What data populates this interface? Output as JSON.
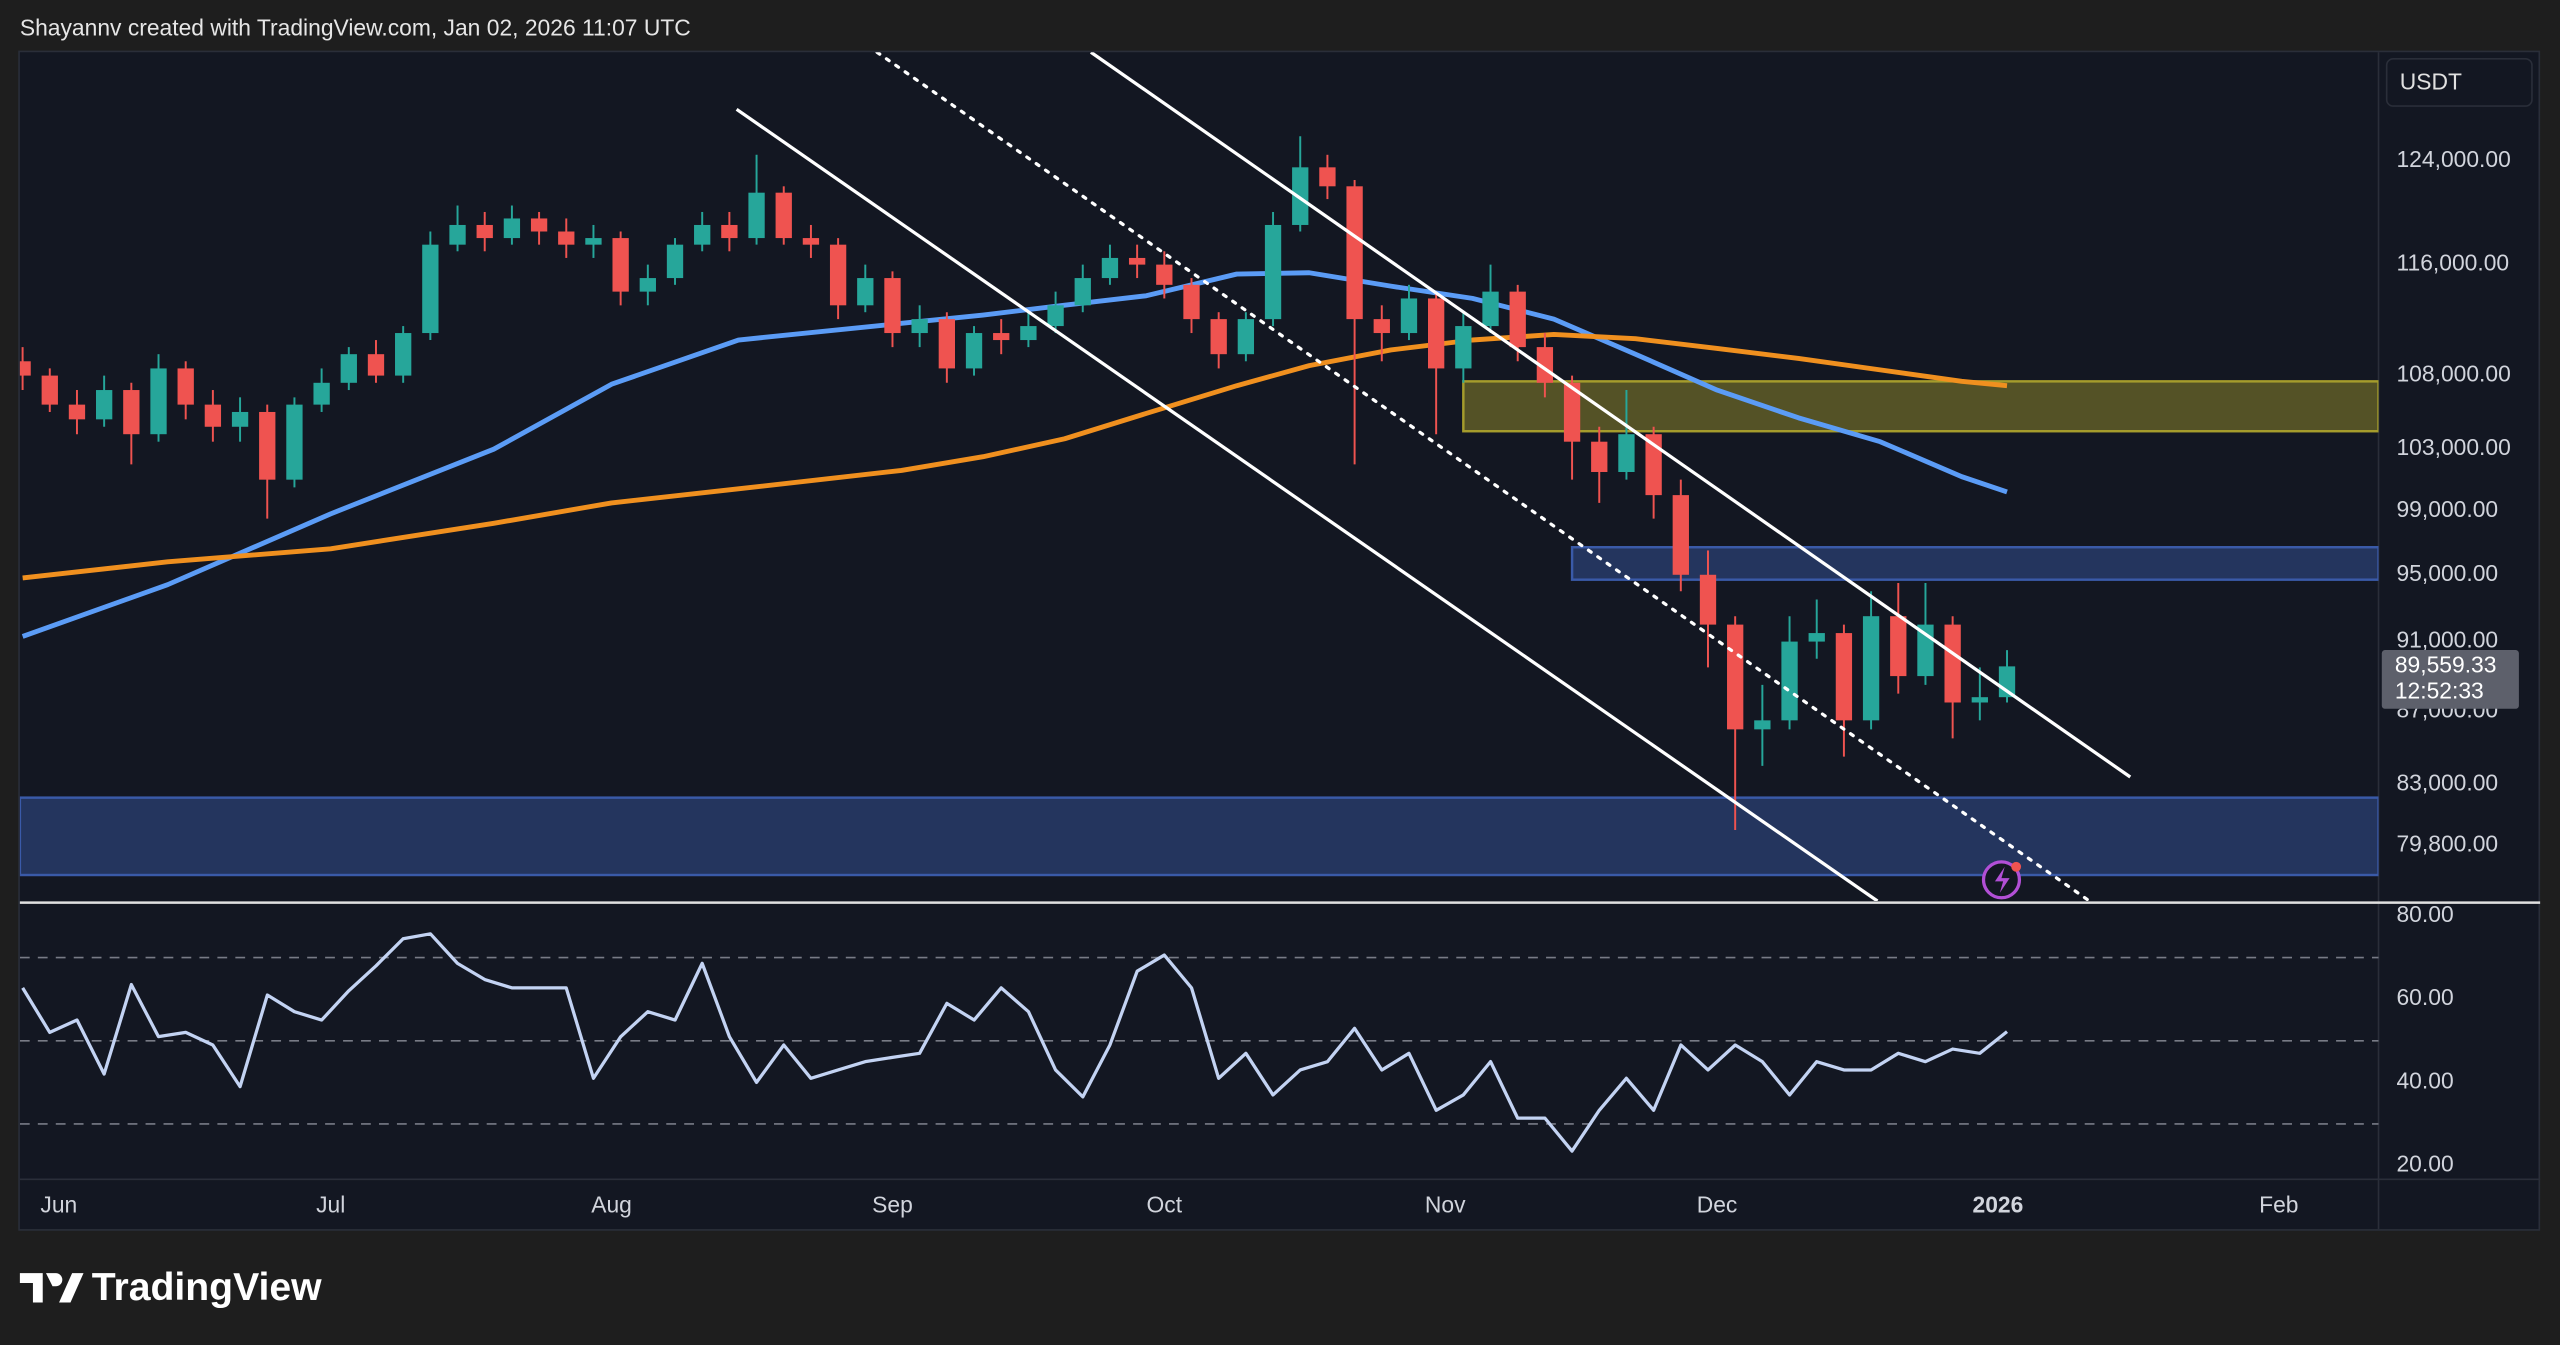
{
  "header": "Shayannv created with TradingView.com, Jan 02, 2026 11:07 UTC",
  "brand": "TradingView",
  "chart_data": {
    "type": "candlestick",
    "currency": "USDT",
    "log_scale": true,
    "grid": false,
    "up_color": "#26a69a",
    "down_color": "#ef5350",
    "xlim": [
      -4.3,
      256
    ],
    "xticks": [
      {
        "value": 0,
        "label": "Jun"
      },
      {
        "value": 30,
        "label": "Jul"
      },
      {
        "value": 61,
        "label": "Aug"
      },
      {
        "value": 92,
        "label": "Sep"
      },
      {
        "value": 122,
        "label": "Oct"
      },
      {
        "value": 153,
        "label": "Nov"
      },
      {
        "value": 183,
        "label": "Dec"
      },
      {
        "value": 214,
        "label": "2026"
      },
      {
        "value": 245,
        "label": "Feb"
      }
    ],
    "ylim": [
      77000,
      133000
    ],
    "yticks": [
      {
        "value": 124000,
        "label": "124,000.00"
      },
      {
        "value": 116000,
        "label": "116,000.00"
      },
      {
        "value": 108000,
        "label": "108,000.00"
      },
      {
        "value": 103000,
        "label": "103,000.00"
      },
      {
        "value": 99000,
        "label": "99,000.00"
      },
      {
        "value": 95000,
        "label": "95,000.00"
      },
      {
        "value": 91000,
        "label": "91,000.00"
      },
      {
        "value": 87000,
        "label": "87,000.00"
      },
      {
        "value": 83000,
        "label": "83,000.00"
      },
      {
        "value": 79800,
        "label": "79,800.00"
      }
    ],
    "x": [
      -4,
      -1,
      2,
      5,
      8,
      11,
      14,
      17,
      20,
      23,
      26,
      29,
      32,
      35,
      38,
      41,
      44,
      47,
      50,
      53,
      56,
      59,
      62,
      65,
      68,
      71,
      74,
      77,
      80,
      83,
      86,
      89,
      92,
      95,
      98,
      101,
      104,
      107,
      110,
      113,
      116,
      119,
      122,
      125,
      128,
      131,
      134,
      137,
      140,
      143,
      146,
      149,
      152,
      155,
      158,
      161,
      164,
      167,
      170,
      173,
      176,
      179,
      182,
      185,
      188,
      191,
      194,
      197,
      200,
      203,
      206,
      209,
      212,
      215
    ],
    "candles": [
      [
        109000,
        110000,
        107000,
        108000
      ],
      [
        108000,
        108500,
        105500,
        106000
      ],
      [
        106000,
        107000,
        104000,
        105000
      ],
      [
        105000,
        108000,
        104500,
        107000
      ],
      [
        107000,
        107500,
        102000,
        104000
      ],
      [
        104000,
        109500,
        103500,
        108500
      ],
      [
        108500,
        109000,
        105000,
        106000
      ],
      [
        106000,
        107000,
        103500,
        104500
      ],
      [
        104500,
        106500,
        103500,
        105500
      ],
      [
        105500,
        106000,
        98500,
        101000
      ],
      [
        101000,
        106500,
        100500,
        106000
      ],
      [
        106000,
        108500,
        105500,
        107500
      ],
      [
        107500,
        110000,
        107000,
        109500
      ],
      [
        109500,
        110500,
        107500,
        108000
      ],
      [
        108000,
        111500,
        107500,
        111000
      ],
      [
        111000,
        118500,
        110500,
        117500
      ],
      [
        117500,
        120500,
        117000,
        119000
      ],
      [
        119000,
        120000,
        117000,
        118000
      ],
      [
        118000,
        120500,
        117500,
        119500
      ],
      [
        119500,
        120000,
        117500,
        118500
      ],
      [
        118500,
        119500,
        116500,
        117500
      ],
      [
        117500,
        119000,
        116500,
        118000
      ],
      [
        118000,
        118500,
        113000,
        114000
      ],
      [
        114000,
        116000,
        113000,
        115000
      ],
      [
        115000,
        118000,
        114500,
        117500
      ],
      [
        117500,
        120000,
        117000,
        119000
      ],
      [
        119000,
        120000,
        117000,
        118000
      ],
      [
        118000,
        124500,
        117500,
        121500
      ],
      [
        121500,
        122000,
        117500,
        118000
      ],
      [
        118000,
        119000,
        116500,
        117500
      ],
      [
        117500,
        118000,
        112000,
        113000
      ],
      [
        113000,
        116000,
        112500,
        115000
      ],
      [
        115000,
        115500,
        110000,
        111000
      ],
      [
        111000,
        113000,
        110000,
        112000
      ],
      [
        112000,
        112500,
        107500,
        108500
      ],
      [
        108500,
        111500,
        108000,
        111000
      ],
      [
        111000,
        112000,
        109500,
        110500
      ],
      [
        110500,
        112500,
        110000,
        111500
      ],
      [
        111500,
        114000,
        111000,
        113000
      ],
      [
        113000,
        116000,
        112500,
        115000
      ],
      [
        115000,
        117500,
        114500,
        116500
      ],
      [
        116500,
        117500,
        115000,
        116000
      ],
      [
        116000,
        117000,
        113500,
        114500
      ],
      [
        114500,
        115000,
        111000,
        112000
      ],
      [
        112000,
        112500,
        108500,
        109500
      ],
      [
        109500,
        112500,
        109000,
        112000
      ],
      [
        112000,
        120000,
        111500,
        119000
      ],
      [
        119000,
        126000,
        118500,
        123500
      ],
      [
        123500,
        124500,
        121000,
        122000
      ],
      [
        122000,
        122500,
        102000,
        112000
      ],
      [
        112000,
        113000,
        109000,
        111000
      ],
      [
        111000,
        114500,
        110500,
        113500
      ],
      [
        113500,
        114000,
        104000,
        108500
      ],
      [
        108500,
        112500,
        107500,
        111500
      ],
      [
        111500,
        116000,
        111000,
        114000
      ],
      [
        114000,
        114500,
        109000,
        110000
      ],
      [
        110000,
        111000,
        106500,
        107500
      ],
      [
        107500,
        108000,
        101000,
        103500
      ],
      [
        103500,
        104500,
        99500,
        101500
      ],
      [
        101500,
        107000,
        101000,
        104000
      ],
      [
        104000,
        104500,
        98500,
        100000
      ],
      [
        100000,
        101000,
        94000,
        95000
      ],
      [
        95000,
        96500,
        89500,
        92000
      ],
      [
        92000,
        92500,
        80600,
        86000
      ],
      [
        86000,
        88500,
        84000,
        86500
      ],
      [
        86500,
        92500,
        86000,
        91000
      ],
      [
        91000,
        93500,
        90000,
        91500
      ],
      [
        91500,
        92000,
        84500,
        86500
      ],
      [
        86500,
        94000,
        86000,
        92500
      ],
      [
        92500,
        94500,
        88000,
        89000
      ],
      [
        89000,
        94500,
        88500,
        92000
      ],
      [
        92000,
        92500,
        85500,
        87500
      ],
      [
        87500,
        89500,
        86500,
        87800
      ],
      [
        87800,
        90500,
        87500,
        89559.33
      ]
    ],
    "moving_averages": [
      {
        "color": "#5b9cf6",
        "x": [
          -4,
          12,
          30,
          48,
          61,
          75,
          93,
          102,
          111,
          120,
          130,
          138,
          147,
          156,
          165,
          174,
          183,
          192,
          201,
          210,
          215
        ],
        "values": [
          91300,
          94400,
          98800,
          103000,
          107400,
          110500,
          111700,
          112300,
          113000,
          113700,
          115300,
          115400,
          114400,
          113500,
          112000,
          109500,
          107000,
          105100,
          103500,
          101200,
          100200
        ]
      },
      {
        "color": "#f0901f",
        "x": [
          -4,
          12,
          30,
          48,
          61,
          75,
          93,
          102,
          111,
          120,
          130,
          138,
          147,
          156,
          165,
          174,
          183,
          192,
          201,
          210,
          215
        ],
        "values": [
          94800,
          95800,
          96600,
          98200,
          99500,
          100400,
          101600,
          102500,
          103700,
          105400,
          107300,
          108700,
          109800,
          110500,
          110900,
          110600,
          109900,
          109200,
          108400,
          107600,
          107300
        ]
      }
    ],
    "zones": [
      {
        "color": "#a59c2c",
        "x": [
          155,
          256
        ],
        "y": [
          104200,
          107600
        ]
      },
      {
        "color": "#3a5aa8",
        "x": [
          167,
          256
        ],
        "y": [
          94700,
          96700
        ]
      },
      {
        "color": "#3a5aa8",
        "x": [
          -4.3,
          256
        ],
        "y": [
          78300,
          82300
        ]
      }
    ],
    "trendlines": [
      {
        "style": "solid",
        "points": [
          [
            113.9,
            133000
          ],
          [
            228.6,
            83400
          ]
        ]
      },
      {
        "style": "solid",
        "points": [
          [
            74.8,
            128200
          ],
          [
            200.7,
            77000
          ]
        ]
      },
      {
        "style": "dotted",
        "points": [
          [
            90.3,
            133000
          ],
          [
            224.1,
            77000
          ]
        ]
      }
    ],
    "last_price": {
      "value": 89559.33,
      "label": "89,559.33"
    },
    "countdown": "12:52:33",
    "rsi": {
      "color": "#c3d3f3",
      "ylim": [
        16.9,
        82.4
      ],
      "yticks": [
        {
          "value": 80,
          "label": "80.00"
        },
        {
          "value": 60,
          "label": "60.00"
        },
        {
          "value": 40,
          "label": "40.00"
        },
        {
          "value": 20,
          "label": "20.00"
        }
      ],
      "bands": [
        70,
        50,
        30
      ],
      "values": [
        62.7,
        52,
        55,
        42,
        63.5,
        51,
        52,
        49,
        39,
        61,
        57,
        55,
        62,
        68,
        74.5,
        75.7,
        68.6,
        64.7,
        62.7,
        62.7,
        62.7,
        41,
        51,
        57,
        55,
        68.6,
        51,
        40,
        49,
        41,
        43,
        45,
        46,
        47,
        59,
        55,
        62.7,
        57,
        43,
        36.5,
        49,
        66.7,
        70.6,
        62.7,
        41,
        47,
        37,
        43,
        45,
        53,
        43,
        47,
        33.3,
        37,
        45,
        31.4,
        31.4,
        23.5,
        33.3,
        41,
        33.3,
        49,
        43,
        49,
        45,
        37,
        45,
        43,
        43,
        47,
        45,
        48,
        47,
        52.2
      ]
    }
  }
}
